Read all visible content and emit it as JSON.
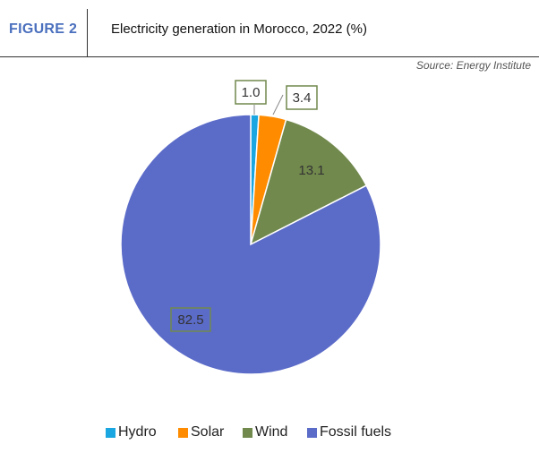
{
  "header": {
    "figure_label": "FIGURE 2",
    "title": "Electricity generation in Morocco, 2022 (%)",
    "source": "Source: Energy Institute"
  },
  "chart_data": {
    "type": "pie",
    "categories": [
      "Hydro",
      "Solar",
      "Wind",
      "Fossil fuels"
    ],
    "values": [
      1.0,
      3.4,
      13.1,
      82.5
    ],
    "value_labels": [
      "1.0",
      "3.4",
      "13.1",
      "82.5"
    ],
    "colors": [
      "#1aa6e0",
      "#ff8c00",
      "#71894d",
      "#5b6bc8"
    ],
    "start": "top",
    "direction": "clockwise",
    "legend_position": "bottom"
  }
}
